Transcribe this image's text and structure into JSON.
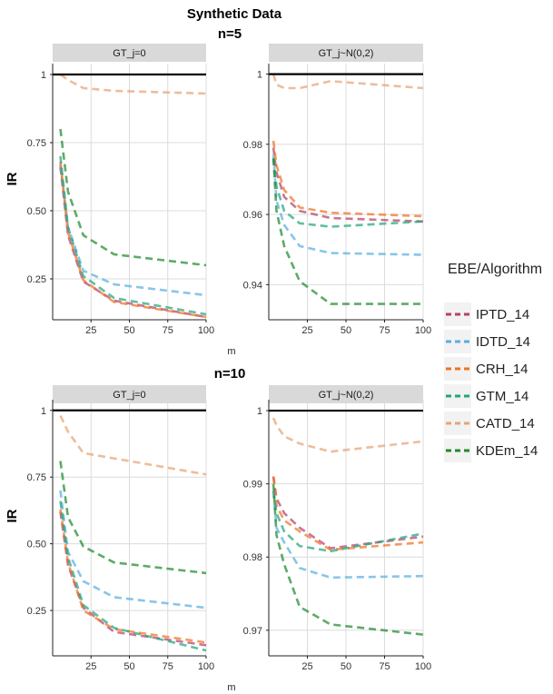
{
  "figure": {
    "title": "Synthetic Data",
    "legend_title": "EBE/Algorithm",
    "legend_position": "right"
  },
  "colors": {
    "IPTD_14": "#b5416d",
    "IDTD_14": "#5aaee0",
    "CRH_14": "#ee7322",
    "GTM_14": "#22a57a",
    "CATD_14": "#e6a474",
    "KDEm_14": "#1f8a2c",
    "reference_line": "#000000"
  },
  "chart_data": [
    {
      "type": "line",
      "block": "n=5",
      "facet": "GT_j=0",
      "xlabel": "m",
      "ylabel": "IR",
      "x_ticks": [
        25,
        50,
        75,
        100
      ],
      "y_ticks": [
        0.25,
        0.5,
        0.75,
        1
      ],
      "y_tick_labels": [
        "0.25",
        "0.50",
        "0.75",
        "1"
      ],
      "xlim": [
        0,
        100
      ],
      "ylim": [
        0.1,
        1.04
      ],
      "grid": true,
      "reference_line": 1,
      "x": [
        5,
        10,
        20,
        40,
        100
      ],
      "series": [
        {
          "name": "IPTD_14",
          "values": [
            0.66,
            0.41,
            0.24,
            0.17,
            0.11
          ]
        },
        {
          "name": "IDTD_14",
          "values": [
            0.67,
            0.44,
            0.28,
            0.23,
            0.19
          ]
        },
        {
          "name": "CRH_14",
          "values": [
            0.68,
            0.42,
            0.245,
            0.165,
            0.11
          ]
        },
        {
          "name": "GTM_14",
          "values": [
            0.7,
            0.44,
            0.26,
            0.18,
            0.12
          ]
        },
        {
          "name": "CATD_14",
          "values": [
            1.0,
            0.98,
            0.95,
            0.94,
            0.93
          ]
        },
        {
          "name": "KDEm_14",
          "values": [
            0.8,
            0.57,
            0.41,
            0.34,
            0.3
          ]
        }
      ]
    },
    {
      "type": "line",
      "block": "n=5",
      "facet": "GT_j~N(0,2)",
      "xlabel": "m",
      "ylabel": "",
      "x_ticks": [
        25,
        50,
        75,
        100
      ],
      "y_ticks": [
        0.94,
        0.96,
        0.98,
        1
      ],
      "y_tick_labels": [
        "0.94",
        "0.96",
        "0.98",
        "1"
      ],
      "xlim": [
        0,
        100
      ],
      "ylim": [
        0.93,
        1.003
      ],
      "grid": true,
      "reference_line": 1,
      "x": [
        3,
        5,
        10,
        20,
        40,
        100
      ],
      "series": [
        {
          "name": "IPTD_14",
          "values": [
            0.979,
            0.972,
            0.965,
            0.961,
            0.959,
            0.958
          ]
        },
        {
          "name": "IDTD_14",
          "values": [
            0.977,
            0.964,
            0.957,
            0.951,
            0.949,
            0.9485
          ]
        },
        {
          "name": "CRH_14",
          "values": [
            0.981,
            0.974,
            0.967,
            0.962,
            0.9605,
            0.9595
          ]
        },
        {
          "name": "GTM_14",
          "values": [
            0.976,
            0.968,
            0.961,
            0.9575,
            0.9565,
            0.958
          ]
        },
        {
          "name": "CATD_14",
          "values": [
            1.0,
            0.997,
            0.996,
            0.996,
            0.998,
            0.996
          ]
        },
        {
          "name": "KDEm_14",
          "values": [
            0.976,
            0.961,
            0.951,
            0.941,
            0.9345,
            0.9345
          ]
        }
      ]
    },
    {
      "type": "line",
      "block": "n=10",
      "facet": "GT_j=0",
      "xlabel": "m",
      "ylabel": "IR",
      "x_ticks": [
        25,
        50,
        75,
        100
      ],
      "y_ticks": [
        0.25,
        0.5,
        0.75,
        1
      ],
      "y_tick_labels": [
        "0.25",
        "0.50",
        "0.75",
        "1"
      ],
      "xlim": [
        0,
        100
      ],
      "ylim": [
        0.08,
        1.04
      ],
      "grid": true,
      "reference_line": 1,
      "x": [
        5,
        10,
        20,
        40,
        100
      ],
      "series": [
        {
          "name": "IPTD_14",
          "values": [
            0.62,
            0.42,
            0.26,
            0.17,
            0.12
          ]
        },
        {
          "name": "IDTD_14",
          "values": [
            0.7,
            0.47,
            0.36,
            0.3,
            0.26
          ]
        },
        {
          "name": "CRH_14",
          "values": [
            0.63,
            0.43,
            0.25,
            0.18,
            0.13
          ]
        },
        {
          "name": "GTM_14",
          "values": [
            0.66,
            0.45,
            0.27,
            0.185,
            0.1
          ]
        },
        {
          "name": "CATD_14",
          "values": [
            0.98,
            0.92,
            0.84,
            0.82,
            0.76
          ]
        },
        {
          "name": "KDEm_14",
          "values": [
            0.81,
            0.6,
            0.49,
            0.43,
            0.39
          ]
        }
      ]
    },
    {
      "type": "line",
      "block": "n=10",
      "facet": "GT_j~N(0,2)",
      "xlabel": "m",
      "ylabel": "",
      "x_ticks": [
        25,
        50,
        75,
        100
      ],
      "y_ticks": [
        0.97,
        0.98,
        0.99,
        1
      ],
      "y_tick_labels": [
        "0.97",
        "0.98",
        "0.99",
        "1"
      ],
      "xlim": [
        0,
        100
      ],
      "ylim": [
        0.9665,
        1.0015
      ],
      "grid": true,
      "reference_line": 1,
      "x": [
        3,
        5,
        10,
        20,
        40,
        100
      ],
      "series": [
        {
          "name": "IPTD_14",
          "values": [
            0.991,
            0.988,
            0.986,
            0.984,
            0.9812,
            0.9828
          ]
        },
        {
          "name": "IDTD_14",
          "values": [
            0.989,
            0.984,
            0.982,
            0.9785,
            0.9772,
            0.9774
          ]
        },
        {
          "name": "CRH_14",
          "values": [
            0.991,
            0.987,
            0.985,
            0.9835,
            0.981,
            0.982
          ]
        },
        {
          "name": "GTM_14",
          "values": [
            0.989,
            0.986,
            0.9835,
            0.9815,
            0.9808,
            0.9832
          ]
        },
        {
          "name": "CATD_14",
          "values": [
            0.999,
            0.998,
            0.9965,
            0.9955,
            0.9944,
            0.9958
          ]
        },
        {
          "name": "KDEm_14",
          "values": [
            0.99,
            0.983,
            0.979,
            0.9732,
            0.9708,
            0.9694
          ]
        }
      ]
    }
  ]
}
